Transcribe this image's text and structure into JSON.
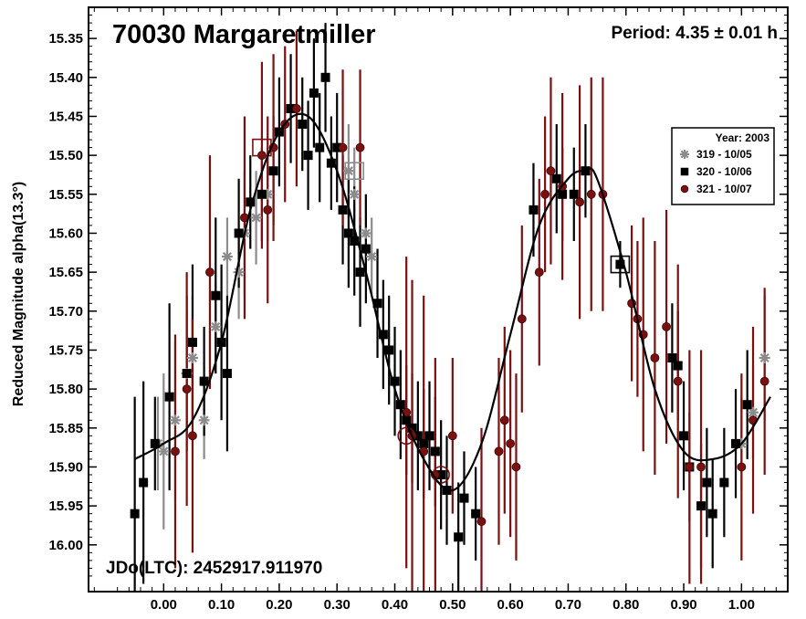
{
  "chart_data": {
    "type": "scatter",
    "title": "70030 Margaretmiller",
    "period_label": "Period: 4.35 ± 0.01 h",
    "jdo_label": "JDo(LTC): 2452917.911970",
    "ylabel": "Reduced Magnitude alpha(13.3°)",
    "xlabel": "",
    "xlim": [
      -0.13,
      1.08
    ],
    "ylim": [
      16.06,
      15.31
    ],
    "y_inverted": true,
    "x_ticks": [
      "0.00",
      "0.10",
      "0.20",
      "0.30",
      "0.40",
      "0.50",
      "0.60",
      "0.70",
      "0.80",
      "0.90",
      "1.00"
    ],
    "x_tick_values": [
      0.0,
      0.1,
      0.2,
      0.3,
      0.4,
      0.5,
      0.6,
      0.7,
      0.8,
      0.9,
      1.0
    ],
    "y_ticks": [
      "15.35",
      "15.40",
      "15.45",
      "15.50",
      "15.55",
      "15.60",
      "15.65",
      "15.70",
      "15.75",
      "15.80",
      "15.85",
      "15.90",
      "15.95",
      "16.00"
    ],
    "y_tick_values": [
      15.35,
      15.4,
      15.45,
      15.5,
      15.55,
      15.6,
      15.65,
      15.7,
      15.75,
      15.8,
      15.85,
      15.9,
      15.95,
      16.0
    ],
    "legend": {
      "title": "Year: 2003",
      "position": "right",
      "entries": [
        "319 - 10/05",
        "320 - 10/06",
        "321 - 10/07"
      ]
    },
    "colors": {
      "s319": "#8c8c8c",
      "s320": "#000000",
      "s321": "#7a1010",
      "fit": "#000000"
    },
    "fit_curve": {
      "x": [
        -0.05,
        0.0,
        0.05,
        0.1,
        0.15,
        0.2,
        0.25,
        0.3,
        0.35,
        0.4,
        0.45,
        0.5,
        0.55,
        0.6,
        0.65,
        0.7,
        0.73,
        0.75,
        0.8,
        0.85,
        0.9,
        0.95,
        1.0,
        1.05
      ],
      "y": [
        15.89,
        15.87,
        15.84,
        15.74,
        15.57,
        15.47,
        15.45,
        15.52,
        15.65,
        15.8,
        15.89,
        15.93,
        15.87,
        15.73,
        15.59,
        15.53,
        15.52,
        15.53,
        15.65,
        15.8,
        15.88,
        15.89,
        15.87,
        15.81
      ]
    },
    "series": [
      {
        "name": "319 - 10/05",
        "marker": "asterisk",
        "points": [
          {
            "x": -0.01,
            "y": 15.87,
            "e": 0.06
          },
          {
            "x": 0.0,
            "y": 15.88,
            "e": 0.1
          },
          {
            "x": 0.02,
            "y": 15.84,
            "e": 0.1
          },
          {
            "x": 0.04,
            "y": 15.78,
            "e": 0.08
          },
          {
            "x": 0.05,
            "y": 15.76,
            "e": 0.08
          },
          {
            "x": 0.07,
            "y": 15.84,
            "e": 0.05
          },
          {
            "x": 0.09,
            "y": 15.72,
            "e": 0.06
          },
          {
            "x": 0.11,
            "y": 15.63,
            "e": 0.05
          },
          {
            "x": 0.13,
            "y": 15.65,
            "e": 0.06
          },
          {
            "x": 0.14,
            "y": 15.6,
            "e": 0.08
          },
          {
            "x": 0.16,
            "y": 15.58,
            "e": 0.06
          },
          {
            "x": 0.18,
            "y": 15.55,
            "e": 0.06
          },
          {
            "x": 0.32,
            "y": 15.52,
            "e": 0.06
          },
          {
            "x": 0.33,
            "y": 15.55,
            "e": 0.06
          },
          {
            "x": 0.35,
            "y": 15.6,
            "e": 0.05
          },
          {
            "x": 0.36,
            "y": 15.63,
            "e": 0.05
          },
          {
            "x": 1.0,
            "y": 15.87,
            "e": 0.06
          },
          {
            "x": 1.02,
            "y": 15.83,
            "e": 0.06
          },
          {
            "x": 1.04,
            "y": 15.76,
            "e": 0.08
          }
        ]
      },
      {
        "name": "320 - 10/06",
        "marker": "square",
        "points": [
          {
            "x": -0.05,
            "y": 15.96,
            "e": 0.15
          },
          {
            "x": -0.035,
            "y": 15.92,
            "e": 0.13
          },
          {
            "x": -0.015,
            "y": 15.87,
            "e": 0.06
          },
          {
            "x": 0.01,
            "y": 15.81,
            "e": 0.12
          },
          {
            "x": 0.04,
            "y": 15.78,
            "e": 0.1
          },
          {
            "x": 0.05,
            "y": 15.74,
            "e": 0.1
          },
          {
            "x": 0.07,
            "y": 15.79,
            "e": 0.07
          },
          {
            "x": 0.09,
            "y": 15.68,
            "e": 0.1
          },
          {
            "x": 0.1,
            "y": 15.74,
            "e": 0.1
          },
          {
            "x": 0.11,
            "y": 15.78,
            "e": 0.1
          },
          {
            "x": 0.13,
            "y": 15.6,
            "e": 0.07
          },
          {
            "x": 0.15,
            "y": 15.56,
            "e": 0.06
          },
          {
            "x": 0.17,
            "y": 15.55,
            "e": 0.06
          },
          {
            "x": 0.19,
            "y": 15.52,
            "e": 0.07
          },
          {
            "x": 0.2,
            "y": 15.47,
            "e": 0.07
          },
          {
            "x": 0.22,
            "y": 15.44,
            "e": 0.07
          },
          {
            "x": 0.24,
            "y": 15.46,
            "e": 0.06
          },
          {
            "x": 0.25,
            "y": 15.5,
            "e": 0.07
          },
          {
            "x": 0.26,
            "y": 15.42,
            "e": 0.07
          },
          {
            "x": 0.27,
            "y": 15.49,
            "e": 0.07
          },
          {
            "x": 0.28,
            "y": 15.4,
            "e": 0.07
          },
          {
            "x": 0.29,
            "y": 15.51,
            "e": 0.06
          },
          {
            "x": 0.3,
            "y": 15.49,
            "e": 0.07
          },
          {
            "x": 0.31,
            "y": 15.57,
            "e": 0.07
          },
          {
            "x": 0.32,
            "y": 15.6,
            "e": 0.07
          },
          {
            "x": 0.33,
            "y": 15.61,
            "e": 0.07
          },
          {
            "x": 0.34,
            "y": 15.65,
            "e": 0.07
          },
          {
            "x": 0.35,
            "y": 15.62,
            "e": 0.07
          },
          {
            "x": 0.37,
            "y": 15.69,
            "e": 0.07
          },
          {
            "x": 0.38,
            "y": 15.73,
            "e": 0.07
          },
          {
            "x": 0.39,
            "y": 15.75,
            "e": 0.07
          },
          {
            "x": 0.4,
            "y": 15.79,
            "e": 0.07
          },
          {
            "x": 0.41,
            "y": 15.82,
            "e": 0.07
          },
          {
            "x": 0.42,
            "y": 15.84,
            "e": 0.07
          },
          {
            "x": 0.43,
            "y": 15.85,
            "e": 0.07
          },
          {
            "x": 0.44,
            "y": 15.86,
            "e": 0.07
          },
          {
            "x": 0.45,
            "y": 15.87,
            "e": 0.07
          },
          {
            "x": 0.46,
            "y": 15.86,
            "e": 0.07
          },
          {
            "x": 0.47,
            "y": 15.88,
            "e": 0.07
          },
          {
            "x": 0.48,
            "y": 15.91,
            "e": 0.07
          },
          {
            "x": 0.49,
            "y": 15.93,
            "e": 0.07
          },
          {
            "x": 0.51,
            "y": 15.99,
            "e": 0.07
          },
          {
            "x": 0.52,
            "y": 15.94,
            "e": 0.06
          },
          {
            "x": 0.54,
            "y": 15.96,
            "e": 0.06
          },
          {
            "x": 0.64,
            "y": 15.57,
            "e": 0.06
          },
          {
            "x": 0.68,
            "y": 15.53,
            "e": 0.07
          },
          {
            "x": 0.69,
            "y": 15.55,
            "e": 0.06
          },
          {
            "x": 0.71,
            "y": 15.55,
            "e": 0.06
          },
          {
            "x": 0.73,
            "y": 15.52,
            "e": 0.06
          },
          {
            "x": 0.79,
            "y": 15.64,
            "e": 0.03
          },
          {
            "x": 0.88,
            "y": 15.76,
            "e": 0.07
          },
          {
            "x": 0.89,
            "y": 15.77,
            "e": 0.07
          },
          {
            "x": 0.9,
            "y": 15.86,
            "e": 0.07
          },
          {
            "x": 0.91,
            "y": 15.9,
            "e": 0.07
          },
          {
            "x": 0.93,
            "y": 15.95,
            "e": 0.08
          },
          {
            "x": 0.94,
            "y": 15.92,
            "e": 0.07
          },
          {
            "x": 0.95,
            "y": 15.96,
            "e": 0.07
          },
          {
            "x": 0.97,
            "y": 15.92,
            "e": 0.07
          },
          {
            "x": 0.99,
            "y": 15.87,
            "e": 0.07
          },
          {
            "x": 1.01,
            "y": 15.82,
            "e": 0.07
          }
        ]
      },
      {
        "name": "321 - 10/07",
        "marker": "circle",
        "points": [
          {
            "x": 0.02,
            "y": 15.88,
            "e": 0.15
          },
          {
            "x": 0.04,
            "y": 15.8,
            "e": 0.15
          },
          {
            "x": 0.05,
            "y": 15.86,
            "e": 0.15
          },
          {
            "x": 0.08,
            "y": 15.65,
            "e": 0.15
          },
          {
            "x": 0.14,
            "y": 15.58,
            "e": 0.13
          },
          {
            "x": 0.17,
            "y": 15.5,
            "e": 0.12
          },
          {
            "x": 0.18,
            "y": 15.57,
            "e": 0.12
          },
          {
            "x": 0.19,
            "y": 15.49,
            "e": 0.12
          },
          {
            "x": 0.21,
            "y": 15.46,
            "e": 0.1
          },
          {
            "x": 0.23,
            "y": 15.44,
            "e": 0.1
          },
          {
            "x": 0.31,
            "y": 15.49,
            "e": 0.1
          },
          {
            "x": 0.34,
            "y": 15.49,
            "e": 0.1
          },
          {
            "x": 0.42,
            "y": 15.83,
            "e": 0.2
          },
          {
            "x": 0.43,
            "y": 15.86,
            "e": 0.2
          },
          {
            "x": 0.45,
            "y": 15.88,
            "e": 0.2
          },
          {
            "x": 0.47,
            "y": 15.91,
            "e": 0.15
          },
          {
            "x": 0.5,
            "y": 15.86,
            "e": 0.1
          },
          {
            "x": 0.55,
            "y": 15.97,
            "e": 0.12
          },
          {
            "x": 0.58,
            "y": 15.88,
            "e": 0.12
          },
          {
            "x": 0.59,
            "y": 15.84,
            "e": 0.12
          },
          {
            "x": 0.6,
            "y": 15.87,
            "e": 0.12
          },
          {
            "x": 0.61,
            "y": 15.9,
            "e": 0.12
          },
          {
            "x": 0.62,
            "y": 15.71,
            "e": 0.12
          },
          {
            "x": 0.65,
            "y": 15.65,
            "e": 0.12
          },
          {
            "x": 0.66,
            "y": 15.55,
            "e": 0.1
          },
          {
            "x": 0.67,
            "y": 15.52,
            "e": 0.12
          },
          {
            "x": 0.69,
            "y": 15.54,
            "e": 0.12
          },
          {
            "x": 0.72,
            "y": 15.56,
            "e": 0.15
          },
          {
            "x": 0.74,
            "y": 15.55,
            "e": 0.15
          },
          {
            "x": 0.76,
            "y": 15.55,
            "e": 0.15
          },
          {
            "x": 0.81,
            "y": 15.69,
            "e": 0.1
          },
          {
            "x": 0.82,
            "y": 15.71,
            "e": 0.1
          },
          {
            "x": 0.83,
            "y": 15.73,
            "e": 0.15
          },
          {
            "x": 0.85,
            "y": 15.76,
            "e": 0.15
          },
          {
            "x": 0.87,
            "y": 15.72,
            "e": 0.15
          },
          {
            "x": 0.89,
            "y": 15.79,
            "e": 0.15
          },
          {
            "x": 0.91,
            "y": 15.9,
            "e": 0.15
          },
          {
            "x": 0.93,
            "y": 15.9,
            "e": 0.15
          },
          {
            "x": 1.0,
            "y": 15.9,
            "e": 0.12
          },
          {
            "x": 1.02,
            "y": 15.84,
            "e": 0.12
          },
          {
            "x": 1.04,
            "y": 15.79,
            "e": 0.12
          }
        ]
      }
    ],
    "highlight_boxes": [
      {
        "x": 0.17,
        "y": 15.49,
        "series": "321 - 10/07"
      },
      {
        "x": 0.33,
        "y": 15.52,
        "series": "319 - 10/05"
      },
      {
        "x": 0.79,
        "y": 15.64,
        "series": "320 - 10/06"
      }
    ],
    "highlight_circles": [
      {
        "x": 0.42,
        "y": 15.86,
        "series": "321 - 10/07"
      },
      {
        "x": 0.48,
        "y": 15.91,
        "series": "321 - 10/07"
      }
    ]
  }
}
